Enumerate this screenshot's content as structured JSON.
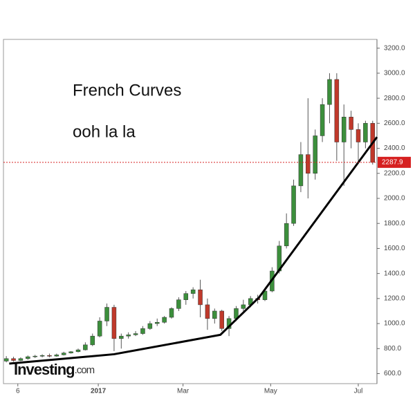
{
  "chart_data": {
    "type": "candlestick",
    "title": "French Curves",
    "subtitle": "ooh la la",
    "x": [
      2,
      7,
      12,
      17,
      22,
      27,
      32,
      37,
      42,
      47,
      52,
      57,
      62,
      67,
      72,
      77,
      82,
      87,
      92,
      97,
      102,
      107,
      112,
      117,
      122,
      127,
      132,
      137,
      142,
      147,
      152,
      157,
      162,
      167,
      172,
      177,
      182,
      187,
      192,
      197,
      202,
      207,
      212,
      217,
      222,
      227,
      232,
      237,
      242,
      247,
      252,
      257
    ],
    "open": [
      700,
      720,
      705,
      720,
      735,
      740,
      745,
      740,
      750,
      765,
      775,
      790,
      830,
      900,
      1020,
      1130,
      880,
      900,
      910,
      920,
      960,
      1000,
      1010,
      1050,
      1120,
      1190,
      1240,
      1270,
      1150,
      1040,
      1100,
      960,
      1040,
      1120,
      1150,
      1200,
      1190,
      1260,
      1420,
      1620,
      1800,
      2100,
      2350,
      2200,
      2500,
      2750,
      2950,
      2450,
      2650,
      2550,
      2450,
      2600
    ],
    "high": [
      740,
      735,
      730,
      745,
      750,
      755,
      760,
      760,
      775,
      780,
      800,
      850,
      920,
      1050,
      1160,
      1150,
      920,
      930,
      940,
      980,
      1020,
      1040,
      1060,
      1130,
      1210,
      1260,
      1290,
      1350,
      1200,
      1120,
      1110,
      1060,
      1140,
      1190,
      1220,
      1230,
      1280,
      1450,
      1660,
      1880,
      2150,
      2450,
      2800,
      2550,
      2800,
      3000,
      3000,
      2750,
      2700,
      2600,
      2620,
      2620
    ],
    "low": [
      690,
      695,
      700,
      710,
      725,
      730,
      730,
      735,
      745,
      760,
      770,
      785,
      820,
      890,
      980,
      780,
      800,
      880,
      900,
      910,
      950,
      980,
      1000,
      1040,
      1100,
      1150,
      1200,
      1050,
      950,
      1000,
      940,
      900,
      1020,
      1100,
      1130,
      1160,
      1180,
      1250,
      1400,
      1600,
      1780,
      2050,
      2000,
      2150,
      2450,
      2600,
      2300,
      2100,
      2400,
      2300,
      2400,
      2270
    ],
    "close": [
      720,
      705,
      720,
      735,
      740,
      745,
      740,
      750,
      765,
      775,
      790,
      830,
      900,
      1020,
      1130,
      880,
      900,
      910,
      920,
      960,
      1000,
      1010,
      1050,
      1120,
      1190,
      1240,
      1270,
      1150,
      1040,
      1100,
      960,
      1040,
      1120,
      1150,
      1200,
      1190,
      1260,
      1420,
      1620,
      1800,
      2100,
      2350,
      2200,
      2500,
      2750,
      2950,
      2450,
      2650,
      2550,
      2450,
      2600,
      2287.9
    ],
    "up_color": "#3c8f3c",
    "down_color": "#c0392b",
    "xlim": [
      0,
      260
    ],
    "xticks": [
      {
        "value": 10,
        "label": "6"
      },
      {
        "value": 66,
        "label": "2017"
      },
      {
        "value": 125,
        "label": "Mar"
      },
      {
        "value": 186,
        "label": "May"
      },
      {
        "value": 247,
        "label": "Jul"
      }
    ],
    "ylim": [
      520,
      3270
    ],
    "yticks": [
      {
        "value": 600,
        "label": "600.0"
      },
      {
        "value": 800,
        "label": "800.0"
      },
      {
        "value": 1000,
        "label": "1000.0"
      },
      {
        "value": 1200,
        "label": "1200.0"
      },
      {
        "value": 1400,
        "label": "1400.0"
      },
      {
        "value": 1600,
        "label": "1600.0"
      },
      {
        "value": 1800,
        "label": "1800.0"
      },
      {
        "value": 2000,
        "label": "2000.0"
      },
      {
        "value": 2200,
        "label": "2200.0"
      },
      {
        "value": 2400,
        "label": "2400.0"
      },
      {
        "value": 2600,
        "label": "2600.0"
      },
      {
        "value": 2800,
        "label": "2800.0"
      },
      {
        "value": 3000,
        "label": "3000.0"
      },
      {
        "value": 3200,
        "label": "3200.0"
      }
    ],
    "last_price": 2287.9,
    "last_price_color": "#d62020",
    "trend_line": {
      "x": [
        4,
        77,
        151,
        178,
        260
      ],
      "values": [
        680,
        755,
        910,
        1210,
        2490
      ],
      "color": "#000000"
    },
    "grid": false
  },
  "logo": {
    "name": "Investing",
    "suffix": ".com"
  }
}
